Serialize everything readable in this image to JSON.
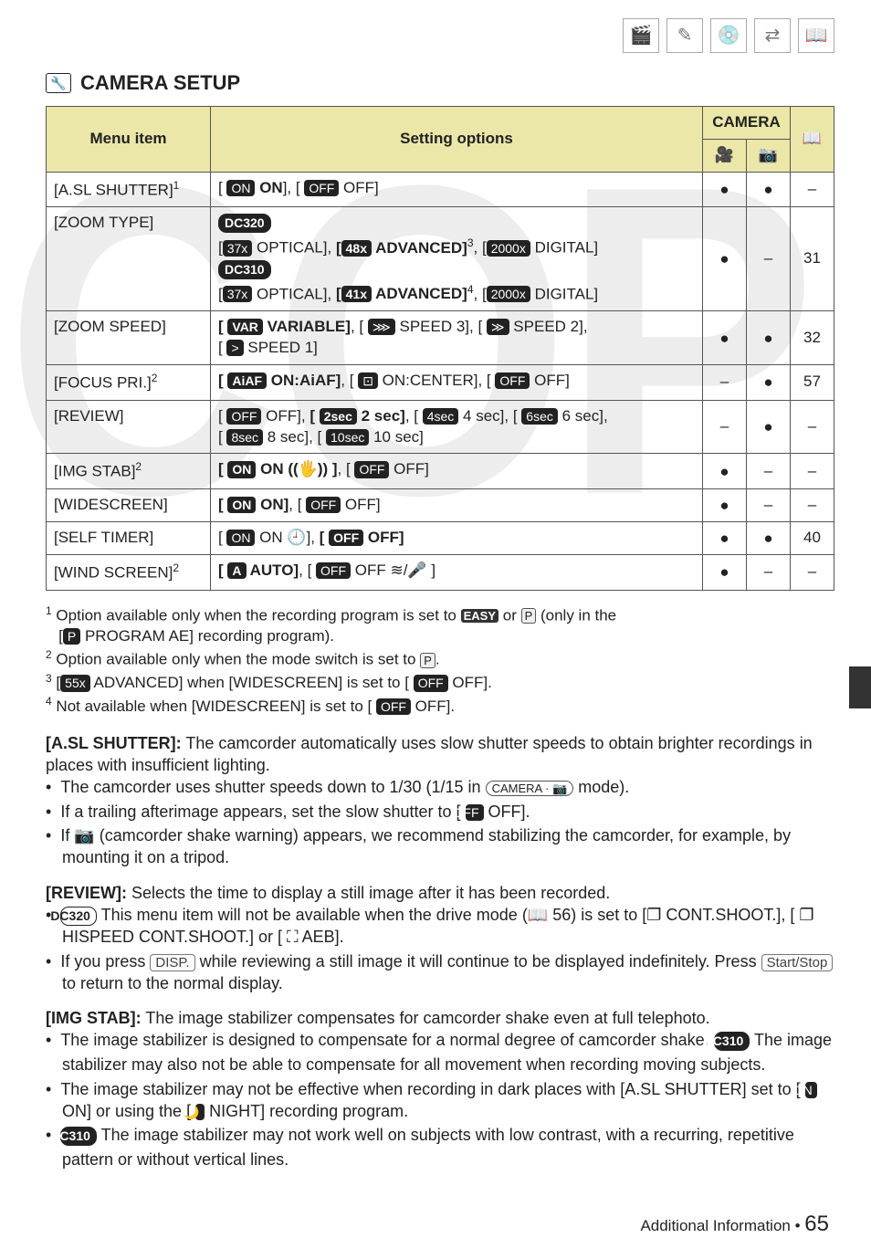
{
  "watermark": "COP",
  "section_title": "CAMERA SETUP",
  "table": {
    "headers": {
      "menu": "Menu item",
      "settings": "Setting options",
      "camera": "CAMERA",
      "book": "📖"
    },
    "rows": [
      {
        "menu": "[A.SL SHUTTER]",
        "menuSup": "1",
        "settings": "[ ON  ON], [ OFF  OFF]",
        "c1": "●",
        "c2": "●",
        "p": "–"
      },
      {
        "menu": "[ZOOM TYPE]",
        "settings": "DC320\n[ 37x OPTICAL], [ 48x ADVANCED]³, [ 2000x DIGITAL]\nDC310\n[ 37x OPTICAL], [ 41x ADVANCED]⁴, [ 2000x DIGITAL]",
        "c1": "●",
        "c2": "–",
        "p": "31",
        "multi": true
      },
      {
        "menu": "[ZOOM SPEED]",
        "settings": "[ VAR  VARIABLE], [ ⋙ SPEED 3], [ ≫ SPEED 2],\n[ > SPEED 1]",
        "c1": "●",
        "c2": "●",
        "p": "32"
      },
      {
        "menu": "[FOCUS PRI.]",
        "menuSup": "2",
        "settings": "[ AiAF  ON:AiAF], [ ⊡  ON:CENTER], [ OFF  OFF]",
        "c1": "–",
        "c2": "●",
        "p": "57"
      },
      {
        "menu": "[REVIEW]",
        "settings": "[ OFF  OFF], [ 2sec  2 sec], [ 4sec  4 sec], [ 6sec  6 sec],\n[ 8sec  8 sec], [ 10sec  10 sec]",
        "c1": "–",
        "c2": "●",
        "p": "–"
      },
      {
        "menu": "[IMG STAB]",
        "menuSup": "2",
        "settings": "[ ON  ON ((🖐)) ], [ OFF  OFF]",
        "c1": "●",
        "c2": "–",
        "p": "–"
      },
      {
        "menu": "[WIDESCREEN]",
        "settings": "[ ON  ON], [ OFF  OFF]",
        "c1": "●",
        "c2": "–",
        "p": "–"
      },
      {
        "menu": "[SELF TIMER]",
        "settings": "[ ON  ON 🕘], [ OFF  OFF]",
        "c1": "●",
        "c2": "●",
        "p": "40"
      },
      {
        "menu": "[WIND SCREEN]",
        "menuSup": "2",
        "settings": "[ A  AUTO], [ OFF  OFF ≋/🎤 ]",
        "c1": "●",
        "c2": "–",
        "p": "–"
      }
    ]
  },
  "footnotes": {
    "f1a": "Option available only when the recording program is set to ",
    "f1b": " or ",
    "f1c": " (only in the",
    "f1d": "[ P  PROGRAM AE] recording program).",
    "f2": "Option available only when the mode switch is set to ",
    "f3": "[ 55x  ADVANCED] when [WIDESCREEN] is set to [ OFF  OFF].",
    "f4": "Not available when [WIDESCREEN] is set to [ OFF  OFF].",
    "easy": "EASY",
    "p": "P",
    "f2end": "."
  },
  "asl": {
    "head": "[A.SL SHUTTER]:",
    "body": "The camcorder automatically uses slow shutter speeds to obtain brighter recordings in places with insufficient lighting.",
    "b1a": "The camcorder uses shutter speeds down to 1/30 (1/15 in ",
    "b1b": " mode).",
    "camera_badge": "CAMERA · 📷",
    "b2": "If a trailing afterimage appears, set the slow shutter to [ OFF  OFF].",
    "b3": "If 📷 (camcorder shake warning) appears, we recommend stabilizing the camcorder, for example, by mounting it on a tripod."
  },
  "review": {
    "head": "[REVIEW]:",
    "body": "Selects the time to display a still image after it has been recorded.",
    "b1": " This menu item will not be available when the drive mode (📖 56) is set to [❐ CONT.SHOOT.], [ ❐ HISPEED CONT.SHOOT.] or [ ⛶ AEB].",
    "b2a": "If you press ",
    "b2key": "DISP.",
    "b2b": " while reviewing a still image it will continue to be displayed indefinitely. Press ",
    "b2key2": "Start/Stop",
    "b2c": " to return to the normal display.",
    "model": "DC320"
  },
  "imgstab": {
    "head": "[IMG STAB]:",
    "body": "The image stabilizer compensates for camcorder shake even at full telephoto.",
    "b1a": "The image stabilizer is designed to compensate for a normal degree of camcorder shake. ",
    "b1b": " The image stabilizer may also not be able to compensate for all movement when recording moving subjects.",
    "b2": "The image stabilizer may not be effective when recording in dark places with [A.SL SHUTTER] set to [ ON  ON] or using the [ 🌙  NIGHT] recording program.",
    "b3": " The image stabilizer may not work well on subjects with low contrast, with a recurring, repetitive pattern or without vertical lines.",
    "model": "DC310"
  },
  "footer": {
    "label": "Additional Information",
    "sep": "•",
    "page": "65"
  }
}
